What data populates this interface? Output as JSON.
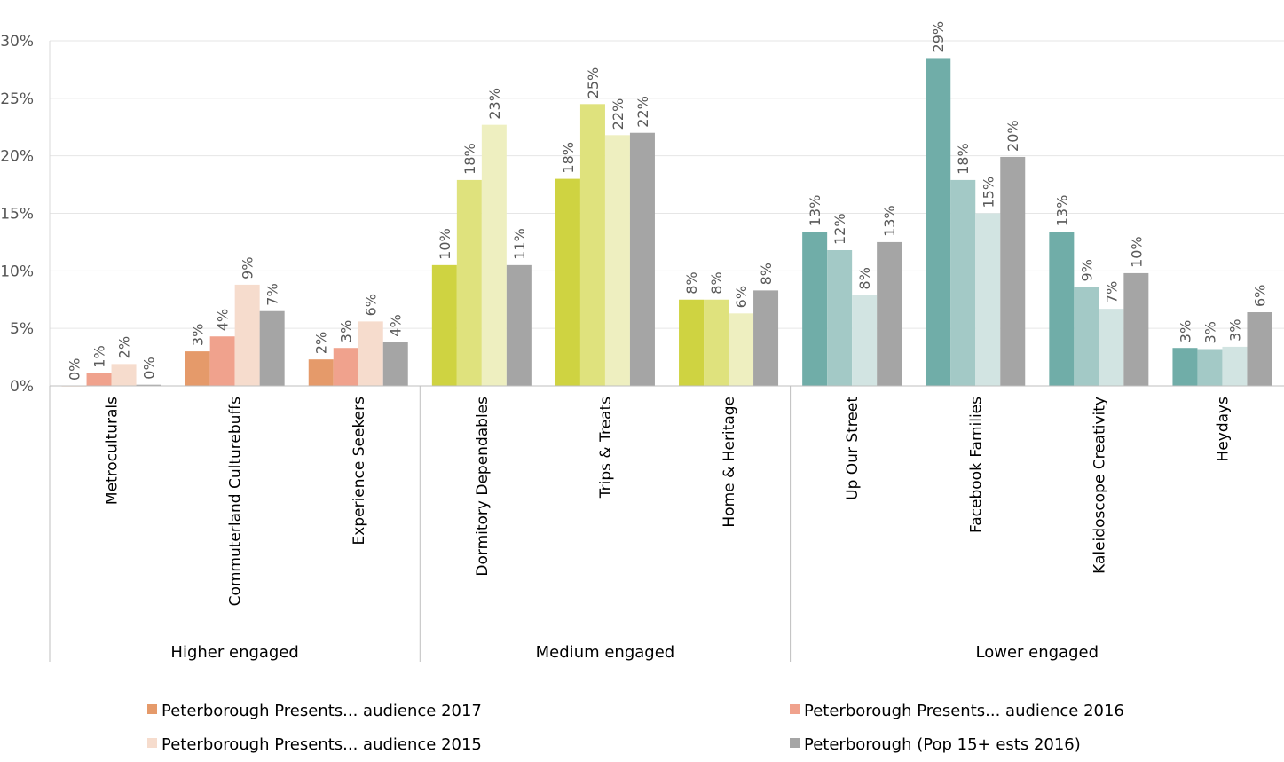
{
  "chart_data": {
    "type": "bar",
    "title": "",
    "xlabel": "",
    "ylabel": "",
    "ylim": [
      0,
      30
    ],
    "yticks": [
      0,
      5,
      10,
      15,
      20,
      25,
      30
    ],
    "ytick_labels": [
      "0%",
      "5%",
      "10%",
      "15%",
      "20%",
      "25%",
      "30%"
    ],
    "grid": true,
    "legend_position": "bottom",
    "categories": [
      "Metroculturals",
      "Commuterland Culturebuffs",
      "Experience Seekers",
      "Dormitory Dependables",
      "Trips & Treats",
      "Home & Heritage",
      "Up Our Street",
      "Facebook Families",
      "Kaleidoscope Creativity",
      "Heydays"
    ],
    "groups": [
      {
        "label": "Higher engaged",
        "categories": [
          "Metroculturals",
          "Commuterland Culturebuffs",
          "Experience Seekers"
        ],
        "colors": [
          "#e59a6a",
          "#f0a28d",
          "#f6dccd",
          "#a5a5a5"
        ]
      },
      {
        "label": "Medium engaged",
        "categories": [
          "Dormitory Dependables",
          "Trips & Treats",
          "Home & Heritage"
        ],
        "colors": [
          "#cfd341",
          "#dfe27d",
          "#eeefc0",
          "#a5a5a5"
        ]
      },
      {
        "label": "Lower engaged",
        "categories": [
          "Up Our Street",
          "Facebook Families",
          "Kaleidoscope Creativity",
          "Heydays"
        ],
        "colors": [
          "#70ada8",
          "#a3c9c6",
          "#d2e4e2",
          "#a5a5a5"
        ]
      }
    ],
    "series": [
      {
        "name": "Peterborough Presents... audience 2017",
        "values": [
          0.0,
          3.0,
          2.3,
          10.5,
          18.0,
          7.5,
          13.4,
          28.5,
          13.4,
          3.3
        ],
        "labels": [
          "0%",
          "3%",
          "2%",
          "10%",
          "18%",
          "8%",
          "13%",
          "29%",
          "13%",
          "3%"
        ],
        "legend_color": "#e59a6a"
      },
      {
        "name": "Peterborough Presents... audience 2016",
        "values": [
          1.1,
          4.3,
          3.3,
          17.9,
          24.5,
          7.5,
          11.8,
          17.9,
          8.6,
          3.2
        ],
        "labels": [
          "1%",
          "4%",
          "3%",
          "18%",
          "25%",
          "8%",
          "12%",
          "18%",
          "9%",
          "3%"
        ],
        "legend_color": "#f0a28d"
      },
      {
        "name": "Peterborough Presents... audience 2015",
        "values": [
          1.9,
          8.8,
          5.6,
          22.7,
          21.8,
          6.3,
          7.9,
          15.0,
          6.7,
          3.4
        ],
        "labels": [
          "2%",
          "9%",
          "6%",
          "23%",
          "22%",
          "6%",
          "8%",
          "15%",
          "7%",
          "3%"
        ],
        "legend_color": "#f6dccd"
      },
      {
        "name": "Peterborough (Pop 15+ ests  2016)",
        "values": [
          0.1,
          6.5,
          3.8,
          10.5,
          22.0,
          8.3,
          12.5,
          19.9,
          9.8,
          6.4
        ],
        "labels": [
          "0%",
          "7%",
          "4%",
          "11%",
          "22%",
          "8%",
          "13%",
          "20%",
          "10%",
          "6%"
        ],
        "legend_color": "#a5a5a5"
      }
    ]
  }
}
